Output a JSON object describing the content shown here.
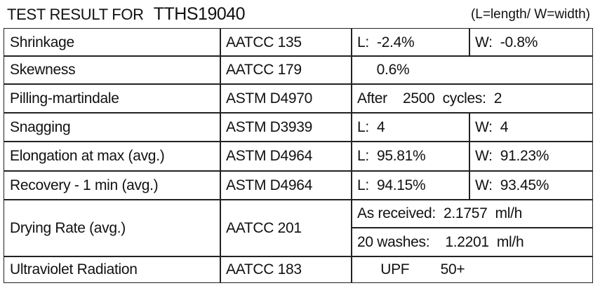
{
  "title": {
    "prefix": "TEST RESULT FOR",
    "code": "TTHS19040",
    "legend": "(L=length/ W=width)"
  },
  "rows": [
    {
      "test": "Shrinkage",
      "method": "AATCC 135",
      "l": "L:  -2.4%",
      "w": "W:  -0.8%"
    },
    {
      "test": "Skewness",
      "method": "AATCC 179",
      "result": "     0.6%"
    },
    {
      "test": "Pilling-martindale",
      "method": "ASTM D4970",
      "result": "After    2500  cycles:  2"
    },
    {
      "test": "Snagging",
      "method": "ASTM D3939",
      "l": "L:  4",
      "w": "W:  4"
    },
    {
      "test": "Elongation at max (avg.)",
      "method": "ASTM D4964",
      "l": "L:  95.81%",
      "w": "W:  91.23%"
    },
    {
      "test": "Recovery - 1 min (avg.)",
      "method": "ASTM D4964",
      "l": "L:  94.15%",
      "w": "W:  93.45%"
    },
    {
      "test": "Drying Rate (avg.)",
      "method": "AATCC 201",
      "result_a": "As received:  2.1757  ml/h",
      "result_b": "20 washes:    1.2201  ml/h"
    },
    {
      "test": "Ultraviolet Radiation",
      "method": "AATCC 183",
      "result": "      UPF        50+"
    }
  ]
}
